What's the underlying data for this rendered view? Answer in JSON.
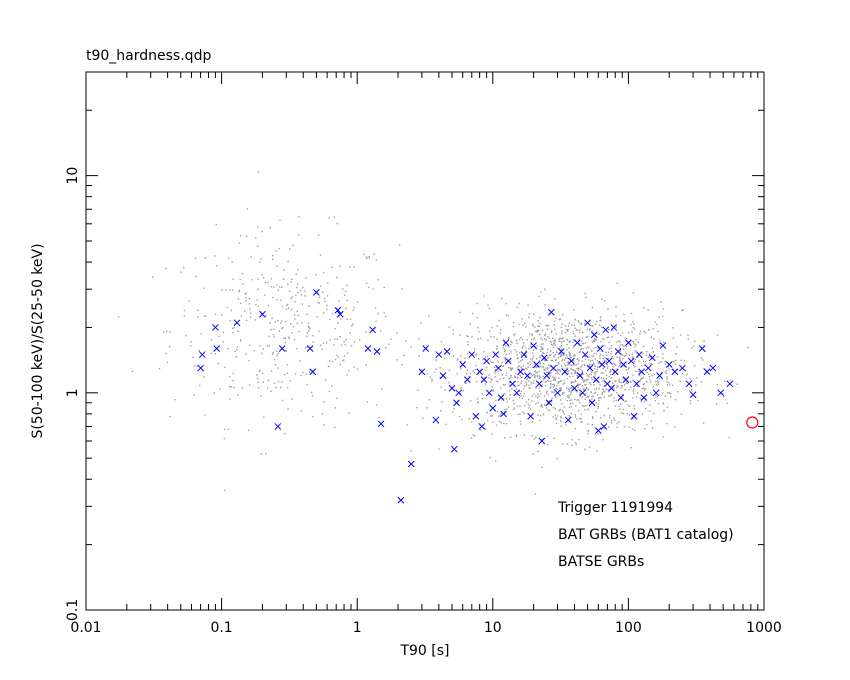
{
  "chart_data": {
    "type": "scatter",
    "title": "t90_hardness.qdp",
    "xlabel": "T90 [s]",
    "ylabel": "S(50-100 keV)/S(25-50 keV)",
    "xscale": "log",
    "yscale": "log",
    "xlim": [
      0.01,
      1000
    ],
    "ylim": [
      0.1,
      30
    ],
    "xticks": [
      "0.01",
      "0.1",
      "1",
      "10",
      "100",
      "1000"
    ],
    "yticks": [
      "0.1",
      "1",
      "10"
    ],
    "grid": false,
    "legend_placement": "bottom-right",
    "series": [
      {
        "name": "Trigger 1191994",
        "color": "#ff0000",
        "marker": "circle",
        "points": [
          [
            820,
            0.73
          ]
        ]
      },
      {
        "name": "BAT GRBs (BAT1 catalog)",
        "color": "#0000ff",
        "marker": "x",
        "points": [
          [
            0.07,
            1.3
          ],
          [
            0.072,
            1.5
          ],
          [
            0.09,
            2.0
          ],
          [
            0.092,
            1.6
          ],
          [
            0.13,
            2.1
          ],
          [
            0.2,
            2.3
          ],
          [
            0.26,
            0.7
          ],
          [
            0.28,
            1.6
          ],
          [
            0.45,
            1.6
          ],
          [
            0.47,
            1.25
          ],
          [
            0.5,
            2.9
          ],
          [
            0.72,
            2.4
          ],
          [
            0.75,
            2.3
          ],
          [
            1.2,
            1.6
          ],
          [
            1.3,
            1.95
          ],
          [
            1.4,
            1.55
          ],
          [
            1.5,
            0.72
          ],
          [
            2.1,
            0.32
          ],
          [
            2.5,
            0.47
          ],
          [
            3.0,
            1.25
          ],
          [
            3.2,
            1.6
          ],
          [
            3.8,
            0.75
          ],
          [
            4.0,
            1.5
          ],
          [
            4.3,
            1.2
          ],
          [
            4.6,
            1.55
          ],
          [
            5.0,
            1.05
          ],
          [
            5.2,
            0.55
          ],
          [
            5.4,
            0.9
          ],
          [
            5.6,
            1.0
          ],
          [
            6.0,
            1.35
          ],
          [
            6.5,
            1.15
          ],
          [
            7.0,
            1.5
          ],
          [
            7.5,
            0.78
          ],
          [
            8.0,
            1.25
          ],
          [
            8.3,
            0.7
          ],
          [
            8.6,
            1.15
          ],
          [
            9.0,
            1.4
          ],
          [
            9.4,
            1.0
          ],
          [
            10.0,
            0.85
          ],
          [
            10.5,
            1.5
          ],
          [
            11.0,
            1.3
          ],
          [
            11.5,
            0.95
          ],
          [
            12.0,
            0.8
          ],
          [
            12.5,
            1.7
          ],
          [
            13.0,
            1.4
          ],
          [
            14.0,
            1.1
          ],
          [
            15.0,
            1.0
          ],
          [
            16.0,
            1.25
          ],
          [
            17.0,
            1.5
          ],
          [
            18.0,
            1.2
          ],
          [
            19.0,
            0.78
          ],
          [
            20.0,
            1.65
          ],
          [
            21.0,
            1.35
          ],
          [
            22.0,
            1.1
          ],
          [
            23.0,
            0.6
          ],
          [
            24.0,
            1.45
          ],
          [
            25.0,
            1.2
          ],
          [
            26.0,
            0.9
          ],
          [
            27.0,
            2.35
          ],
          [
            28.0,
            1.3
          ],
          [
            30.0,
            1.0
          ],
          [
            32.0,
            1.55
          ],
          [
            34.0,
            1.25
          ],
          [
            36.0,
            0.75
          ],
          [
            38.0,
            1.4
          ],
          [
            40.0,
            1.05
          ],
          [
            42.0,
            1.7
          ],
          [
            44.0,
            1.2
          ],
          [
            46.0,
            1.0
          ],
          [
            48.0,
            1.5
          ],
          [
            50.0,
            2.1
          ],
          [
            52.0,
            1.3
          ],
          [
            54.0,
            0.9
          ],
          [
            56.0,
            1.85
          ],
          [
            58.0,
            1.15
          ],
          [
            60.0,
            0.67
          ],
          [
            62.0,
            1.6
          ],
          [
            64.0,
            1.35
          ],
          [
            66.0,
            0.7
          ],
          [
            68.0,
            1.95
          ],
          [
            70.0,
            1.1
          ],
          [
            72.0,
            1.4
          ],
          [
            75.0,
            1.05
          ],
          [
            78.0,
            2.0
          ],
          [
            80.0,
            1.25
          ],
          [
            84.0,
            1.55
          ],
          [
            88.0,
            0.95
          ],
          [
            92.0,
            1.35
          ],
          [
            96.0,
            1.15
          ],
          [
            100.0,
            1.7
          ],
          [
            105.0,
            1.4
          ],
          [
            110.0,
            0.78
          ],
          [
            115.0,
            1.1
          ],
          [
            120.0,
            1.5
          ],
          [
            125.0,
            1.25
          ],
          [
            130.0,
            0.95
          ],
          [
            140.0,
            1.3
          ],
          [
            150.0,
            1.45
          ],
          [
            160.0,
            1.0
          ],
          [
            170.0,
            1.2
          ],
          [
            180.0,
            1.65
          ],
          [
            200.0,
            1.35
          ],
          [
            220.0,
            1.25
          ],
          [
            250.0,
            1.3
          ],
          [
            280.0,
            1.1
          ],
          [
            300.0,
            0.98
          ],
          [
            350.0,
            1.6
          ],
          [
            380.0,
            1.25
          ],
          [
            420.0,
            1.3
          ],
          [
            480.0,
            1.0
          ],
          [
            560.0,
            1.1
          ]
        ]
      },
      {
        "name": "BATSE GRBs",
        "color": "#a0a0a0",
        "marker": "dot",
        "points": []
      }
    ]
  }
}
